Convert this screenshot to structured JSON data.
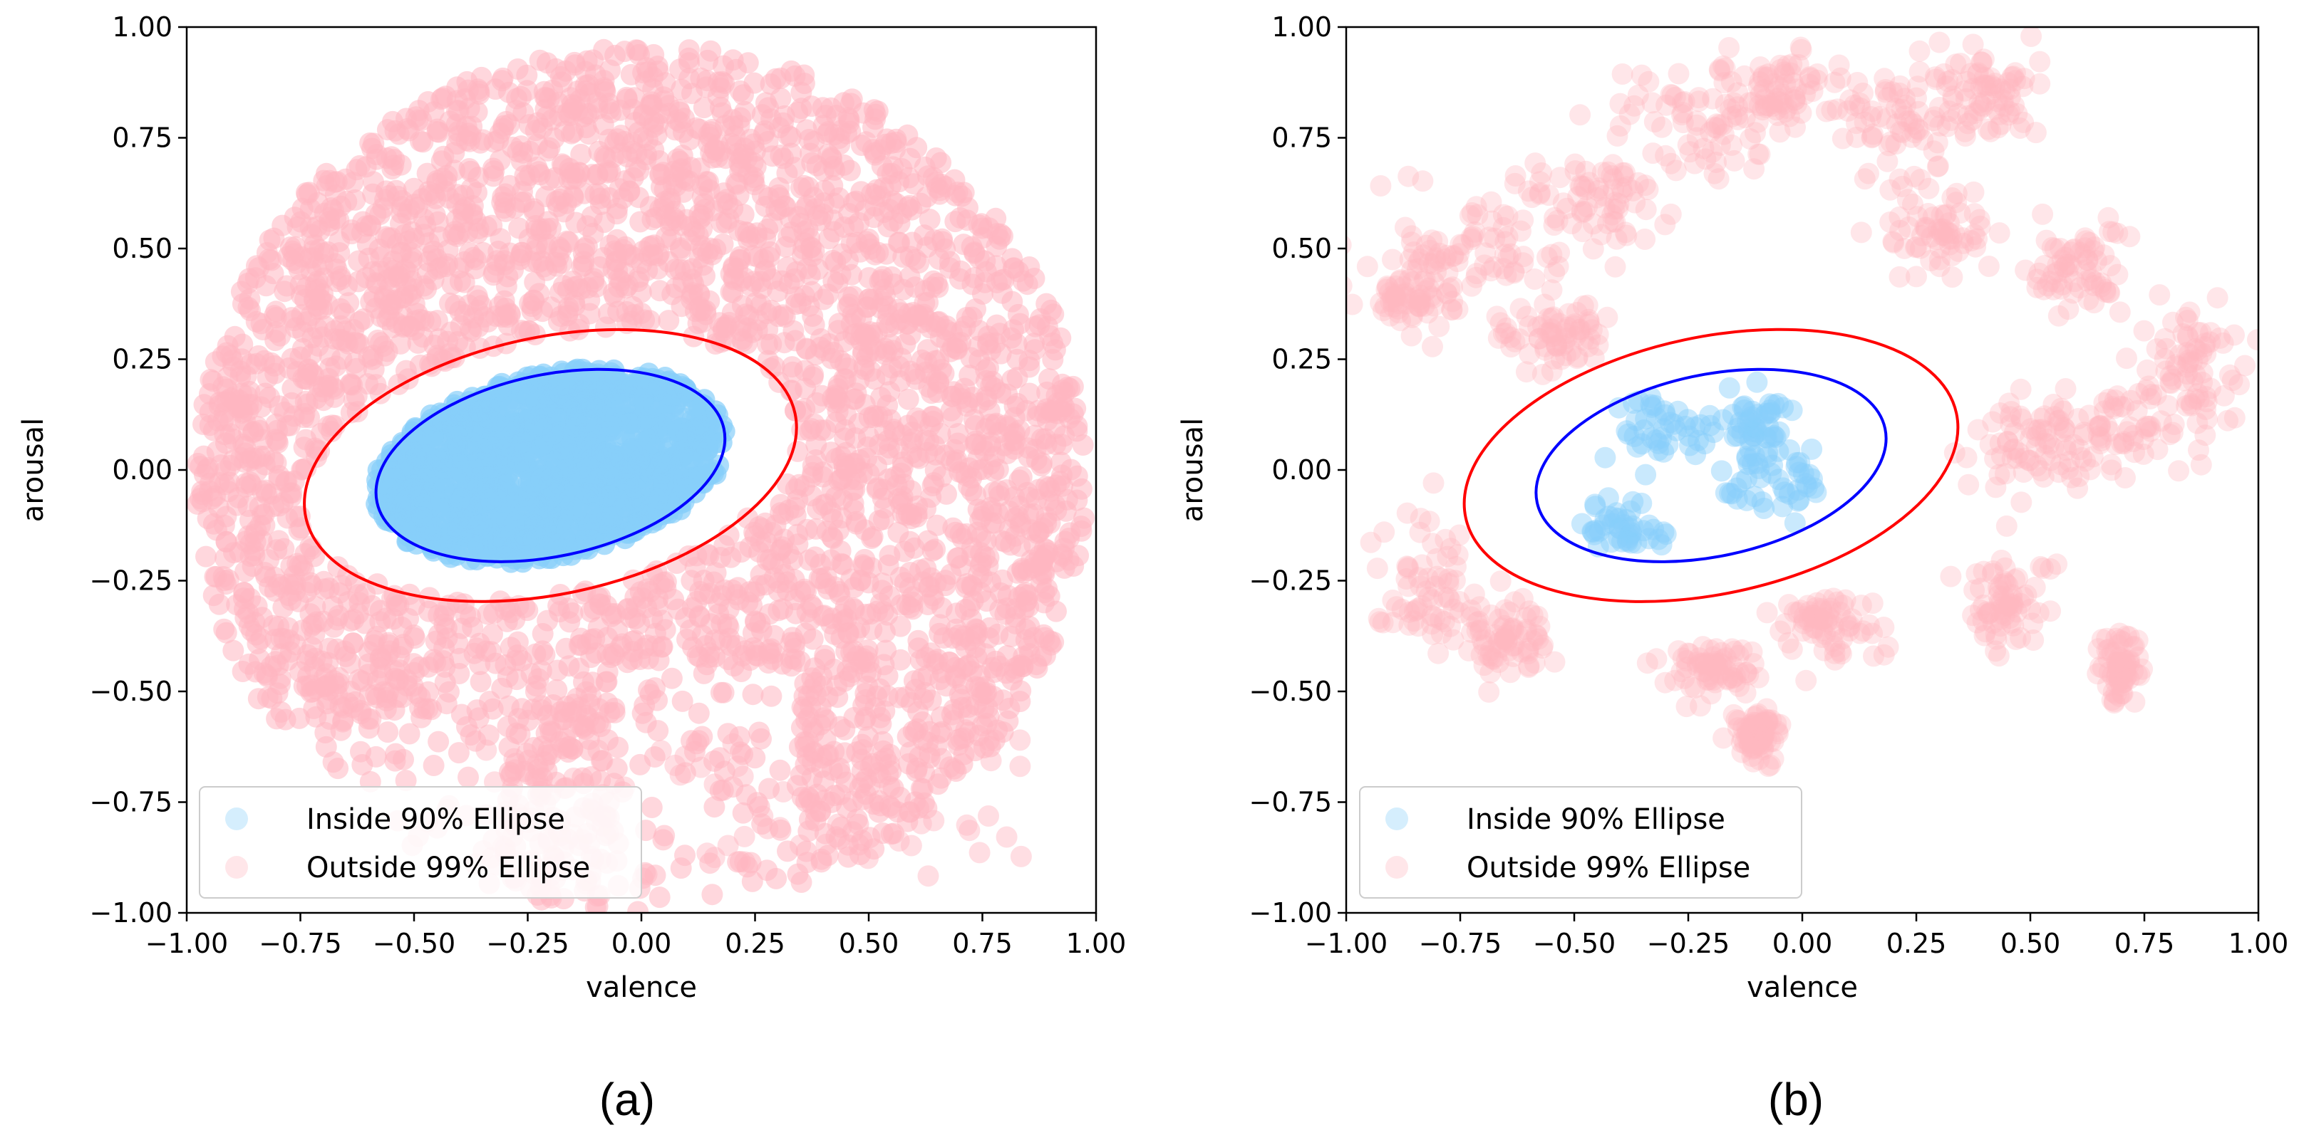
{
  "chart_data": [
    {
      "type": "scatter",
      "panel_label": "(a)",
      "xlabel": "valence",
      "ylabel": "arousal",
      "xlim": [
        -1.0,
        1.0
      ],
      "ylim": [
        -1.0,
        1.0
      ],
      "xticks": [
        "−1.00",
        "−0.75",
        "−0.50",
        "−0.25",
        "0.00",
        "0.25",
        "0.50",
        "0.75",
        "1.00"
      ],
      "yticks": [
        "−1.00",
        "−0.75",
        "−0.50",
        "−0.25",
        "0.00",
        "0.25",
        "0.50",
        "0.75",
        "1.00"
      ],
      "xtick_values": [
        -1.0,
        -0.75,
        -0.5,
        -0.25,
        0.0,
        0.25,
        0.5,
        0.75,
        1.0
      ],
      "ytick_values": [
        -1.0,
        -0.75,
        -0.5,
        -0.25,
        0.0,
        0.25,
        0.5,
        0.75,
        1.0
      ],
      "legend": [
        {
          "label": "Inside 90% Ellipse",
          "color": "#87CEFA"
        },
        {
          "label": "Outside 99% Ellipse",
          "color": "#FFB6C1"
        }
      ],
      "legend_position": "lower-left",
      "density": "dense",
      "ellipses": [
        {
          "name": "90% ellipse",
          "color": "#0000FF",
          "center": [
            -0.2,
            0.01
          ],
          "semi_axes": [
            0.39,
            0.205
          ],
          "angle_deg": 12
        },
        {
          "name": "99% ellipse",
          "color": "#FF0000",
          "center": [
            -0.2,
            0.01
          ],
          "semi_axes": [
            0.55,
            0.29
          ],
          "angle_deg": 12
        }
      ],
      "series": [
        {
          "name": "Inside 90% Ellipse",
          "color": "#87CEFA",
          "region": "filled 90% ellipse"
        },
        {
          "name": "Outside 99% Ellipse",
          "color": "#FFB6C1",
          "region": "dense cloud covering most of the circle of radius 1 outside the 99% ellipse, with lobes below y=-0.5"
        }
      ]
    },
    {
      "type": "scatter",
      "panel_label": "(b)",
      "xlabel": "valence",
      "ylabel": "arousal",
      "xlim": [
        -1.0,
        1.0
      ],
      "ylim": [
        -1.0,
        1.0
      ],
      "xticks": [
        "−1.00",
        "−0.75",
        "−0.50",
        "−0.25",
        "0.00",
        "0.25",
        "0.50",
        "0.75",
        "1.00"
      ],
      "yticks": [
        "−1.00",
        "−0.75",
        "−0.50",
        "−0.25",
        "0.00",
        "0.25",
        "0.50",
        "0.75",
        "1.00"
      ],
      "xtick_values": [
        -1.0,
        -0.75,
        -0.5,
        -0.25,
        0.0,
        0.25,
        0.5,
        0.75,
        1.0
      ],
      "ytick_values": [
        -1.0,
        -0.75,
        -0.5,
        -0.25,
        0.0,
        0.25,
        0.5,
        0.75,
        1.0
      ],
      "legend": [
        {
          "label": "Inside 90% Ellipse",
          "color": "#87CEFA"
        },
        {
          "label": "Outside 99% Ellipse",
          "color": "#FFB6C1"
        }
      ],
      "legend_position": "lower-left",
      "density": "sparse",
      "ellipses": [
        {
          "name": "90% ellipse",
          "color": "#0000FF",
          "center": [
            -0.2,
            0.01
          ],
          "semi_axes": [
            0.39,
            0.205
          ],
          "angle_deg": 12
        },
        {
          "name": "99% ellipse",
          "color": "#FF0000",
          "center": [
            -0.2,
            0.01
          ],
          "semi_axes": [
            0.55,
            0.29
          ],
          "angle_deg": 12
        }
      ],
      "series": [
        {
          "name": "Inside 90% Ellipse",
          "color": "#87CEFA",
          "clusters": [
            [
              -0.05,
              -0.02,
              0.12,
              0.09
            ],
            [
              -0.38,
              -0.13,
              0.1,
              0.07
            ],
            [
              -0.3,
              0.1,
              0.12,
              0.08
            ],
            [
              -0.1,
              0.1,
              0.1,
              0.07
            ]
          ]
        },
        {
          "name": "Outside 99% Ellipse",
          "color": "#FFB6C1",
          "clusters": [
            [
              -0.25,
              0.78,
              0.18,
              0.15
            ],
            [
              -0.05,
              0.85,
              0.12,
              0.1
            ],
            [
              0.2,
              0.8,
              0.15,
              0.12
            ],
            [
              0.4,
              0.85,
              0.12,
              0.1
            ],
            [
              -0.7,
              0.5,
              0.18,
              0.14
            ],
            [
              -0.85,
              0.4,
              0.1,
              0.1
            ],
            [
              -0.45,
              0.6,
              0.15,
              0.12
            ],
            [
              0.3,
              0.55,
              0.12,
              0.12
            ],
            [
              0.7,
              0.1,
              0.2,
              0.12
            ],
            [
              0.5,
              0.05,
              0.15,
              0.1
            ],
            [
              0.85,
              0.25,
              0.1,
              0.12
            ],
            [
              -0.82,
              -0.25,
              0.12,
              0.15
            ],
            [
              -0.65,
              -0.38,
              0.1,
              0.08
            ],
            [
              0.05,
              -0.35,
              0.12,
              0.08
            ],
            [
              -0.2,
              -0.45,
              0.1,
              0.06
            ],
            [
              0.45,
              -0.3,
              0.1,
              0.1
            ],
            [
              -0.1,
              -0.6,
              0.05,
              0.06
            ],
            [
              0.7,
              -0.45,
              0.05,
              0.08
            ],
            [
              -0.55,
              0.3,
              0.12,
              0.08
            ],
            [
              0.6,
              0.45,
              0.1,
              0.1
            ]
          ]
        }
      ]
    }
  ]
}
